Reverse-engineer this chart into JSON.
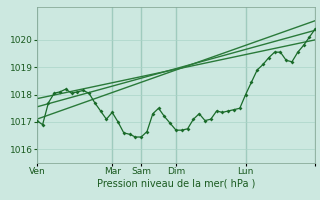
{
  "xlabel": "Pression niveau de la mer( hPa )",
  "background_color": "#cce8e0",
  "grid_color": "#aad4c8",
  "line_color": "#1a6b2a",
  "trend_color": "#2a7a3a",
  "xlim": [
    0,
    24
  ],
  "ylim": [
    1015.5,
    1021.2
  ],
  "yticks": [
    1016,
    1017,
    1018,
    1019,
    1020
  ],
  "xtick_positions": [
    0,
    6.5,
    9,
    12,
    18,
    24
  ],
  "xtick_labels": [
    "Ven",
    "Mar",
    "Sam",
    "Dim",
    "Lun"
  ],
  "vline_positions": [
    0,
    6.5,
    9,
    12,
    18,
    24
  ],
  "trend1_x": [
    0,
    24
  ],
  "trend1_y": [
    1017.1,
    1020.7
  ],
  "trend2_x": [
    0,
    24
  ],
  "trend2_y": [
    1017.55,
    1020.35
  ],
  "trend3_x": [
    0,
    24
  ],
  "trend3_y": [
    1017.85,
    1020.0
  ],
  "data_x": [
    0,
    0.5,
    1,
    1.5,
    2,
    2.5,
    3,
    3.5,
    4,
    4.5,
    5,
    5.5,
    6,
    6.5,
    7,
    7.5,
    8,
    8.5,
    9,
    9.5,
    10,
    10.5,
    11,
    11.5,
    12,
    12.5,
    13,
    13.5,
    14,
    14.5,
    15,
    15.5,
    16,
    16.5,
    17,
    17.5,
    18,
    18.5,
    19,
    19.5,
    20,
    20.5,
    21,
    21.5,
    22,
    22.5,
    23,
    23.5,
    24
  ],
  "data_y": [
    1017.05,
    1016.9,
    1017.7,
    1018.05,
    1018.1,
    1018.2,
    1018.05,
    1018.1,
    1018.15,
    1018.05,
    1017.7,
    1017.4,
    1017.1,
    1017.35,
    1017.0,
    1016.6,
    1016.55,
    1016.45,
    1016.45,
    1016.65,
    1017.3,
    1017.5,
    1017.2,
    1016.95,
    1016.7,
    1016.7,
    1016.75,
    1017.1,
    1017.3,
    1017.05,
    1017.1,
    1017.4,
    1017.35,
    1017.4,
    1017.45,
    1017.5,
    1018.0,
    1018.45,
    1018.9,
    1019.1,
    1019.35,
    1019.55,
    1019.55,
    1019.25,
    1019.2,
    1019.55,
    1019.8,
    1020.1,
    1020.4
  ]
}
